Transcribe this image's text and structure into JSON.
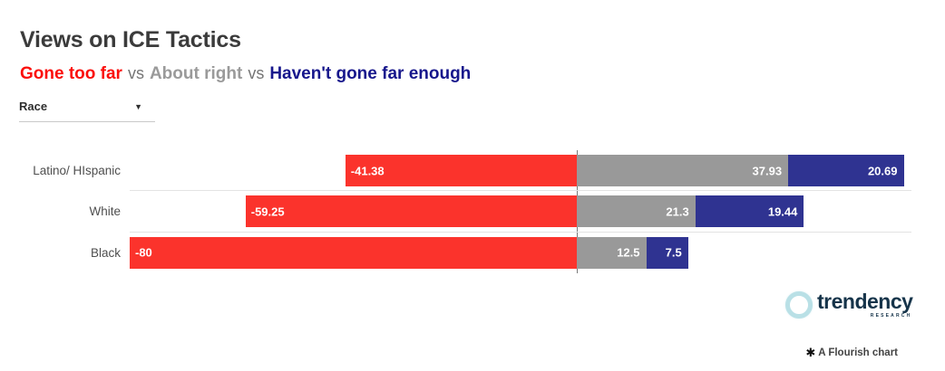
{
  "header": {
    "title": "Views on ICE Tactics",
    "legend": {
      "gone_too_far": "Gone too far",
      "separator1": "vs",
      "about_right": "About right",
      "separator2": "vs",
      "havent_gone_far_enough": "Haven't gone far enough"
    }
  },
  "controls": {
    "filter_label": "Race",
    "caret_icon": "▼"
  },
  "chart_data": {
    "type": "bar",
    "variant": "diverging-stacked-horizontal",
    "title": "Views on ICE Tactics",
    "categories": [
      "Latino/ HIspanic",
      "White",
      "Black"
    ],
    "series": [
      {
        "name": "Gone too far",
        "color": "#fb332c",
        "values": [
          -41.38,
          -59.25,
          -80
        ],
        "labels": [
          "-41.38",
          "-59.25",
          "-80"
        ]
      },
      {
        "name": "About right",
        "color": "#999999",
        "values": [
          37.93,
          21.3,
          12.5
        ],
        "labels": [
          "37.93",
          "21.3",
          "12.5"
        ]
      },
      {
        "name": "Haven't gone far enough",
        "color": "#2f3391",
        "values": [
          20.69,
          19.44,
          7.5
        ],
        "labels": [
          "20.69",
          "19.44",
          "7.5"
        ]
      }
    ],
    "xlim": [
      -80,
      60
    ],
    "value_labels_inside": true,
    "grid": "row-separators-only",
    "zero_axis_line": true,
    "legend_position": "subtitle"
  },
  "branding": {
    "name": "trendency",
    "tagline": "RESEARCH"
  },
  "footer": {
    "icon": "✱",
    "text": "A Flourish chart"
  },
  "colors": {
    "bar_red": "#fb332c",
    "bar_gray": "#999999",
    "bar_navy": "#2f3391",
    "legend_red": "#fb0f0c",
    "legend_gray": "#9a9a9a",
    "legend_navy": "#17178c",
    "vs_gray": "#757575",
    "title_text": "#3b3b3b",
    "zero_line": "#7a7a7a",
    "row_separator": "#e3e3e3"
  }
}
